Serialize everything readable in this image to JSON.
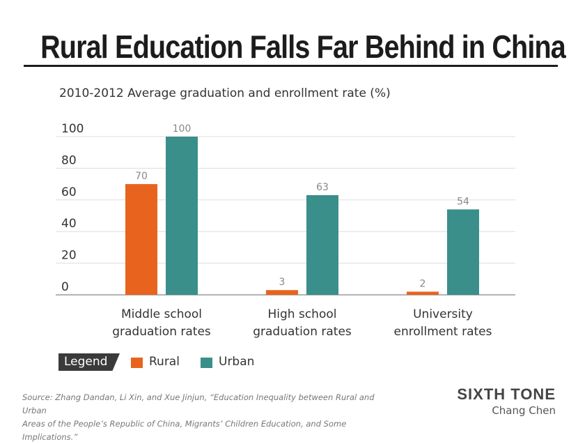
{
  "header": {
    "title": "Rural Education Falls Far Behind in China"
  },
  "chart_data": {
    "type": "bar",
    "title": "Rural Education Falls Far Behind in China",
    "subtitle": "2010-2012 Average graduation and enrollment rate (%)",
    "categories": [
      [
        "Middle school",
        "graduation rates"
      ],
      [
        "High school",
        "graduation rates"
      ],
      [
        "University",
        "enrollment rates"
      ]
    ],
    "series": [
      {
        "name": "Rural",
        "values": [
          70,
          3,
          2
        ],
        "color": "#e8641e"
      },
      {
        "name": "Urban",
        "values": [
          100,
          63,
          54
        ],
        "color": "#3a8f8a"
      }
    ],
    "ylim": [
      0,
      100
    ],
    "yticks": [
      "0",
      "20",
      "40",
      "60",
      "80",
      "100"
    ],
    "grid": true,
    "legend_position": "bottom-left"
  },
  "legend": {
    "label": "Legend",
    "items": [
      {
        "label": "Rural",
        "color": "#e8641e"
      },
      {
        "label": "Urban",
        "color": "#3a8f8a"
      }
    ]
  },
  "footer": {
    "source_line1": "Source: Zhang Dandan, Li Xin, and Xue Jinjun, “Education Inequality between Rural and Urban",
    "source_line2": "Areas of the People’s Republic of China, Migrants’ Children Education, and Some Implications.”",
    "brand": "SIXTH TONE",
    "author": "Chang Chen"
  }
}
